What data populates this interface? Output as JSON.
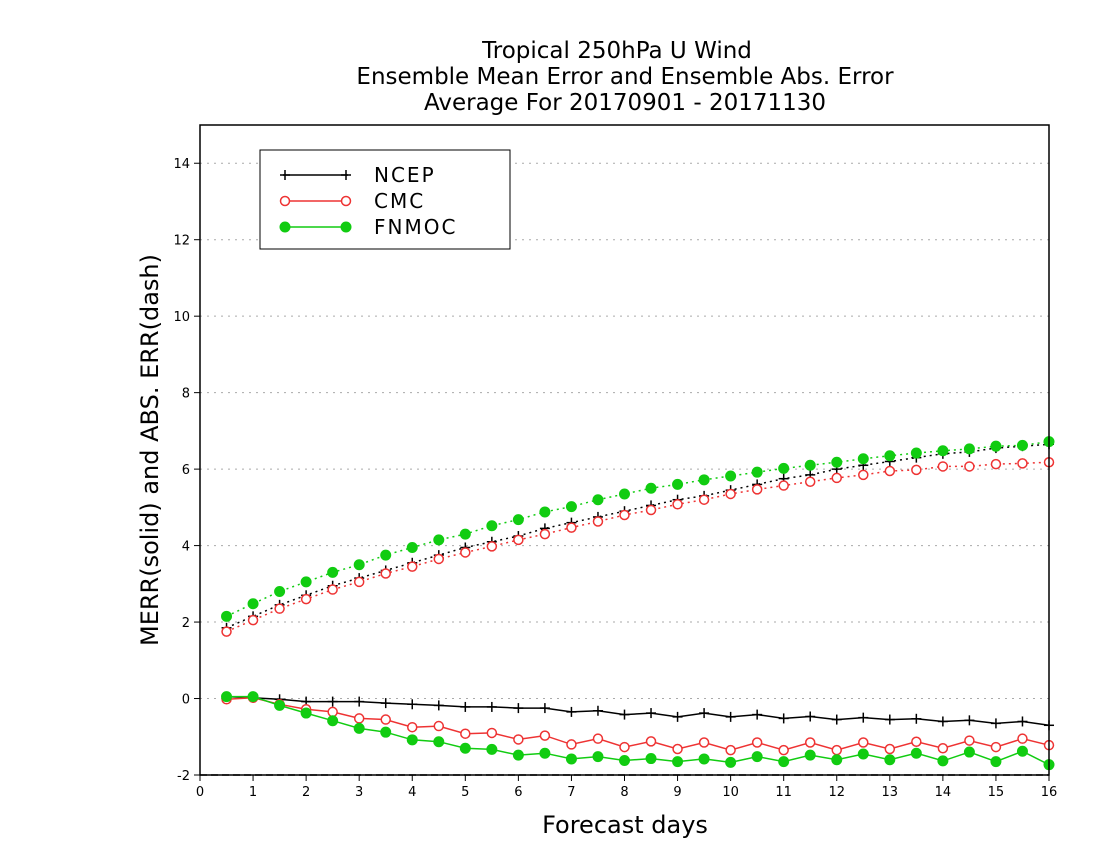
{
  "chart_data": {
    "type": "line",
    "title": [
      "Tropical 250hPa U Wind",
      "Ensemble Mean Error and Ensemble Abs. Error",
      "Average For 20170901 - 20171130"
    ],
    "xlabel": "Forecast days",
    "ylabel": "MERR(solid) and ABS. ERR(dash)",
    "xlim": [
      0,
      16
    ],
    "ylim": [
      -2,
      15
    ],
    "xticks": [
      0,
      1,
      2,
      3,
      4,
      5,
      6,
      7,
      8,
      9,
      10,
      11,
      12,
      13,
      14,
      15,
      16
    ],
    "yticks": [
      -2,
      0,
      2,
      4,
      6,
      8,
      10,
      12,
      14
    ],
    "grid": "horizontal dotted",
    "legend_position": "top-left",
    "x": [
      0.5,
      1.0,
      1.5,
      2.0,
      2.5,
      3.0,
      3.5,
      4.0,
      4.5,
      5.0,
      5.5,
      6.0,
      6.5,
      7.0,
      7.5,
      8.0,
      8.5,
      9.0,
      9.5,
      10.0,
      10.5,
      11.0,
      11.5,
      12.0,
      12.5,
      13.0,
      13.5,
      14.0,
      14.5,
      15.0,
      15.5,
      16.0
    ],
    "series": [
      {
        "name": "NCEP",
        "color": "#000000",
        "marker": "plus",
        "merr": [
          0.05,
          0.02,
          -0.02,
          -0.08,
          -0.08,
          -0.08,
          -0.12,
          -0.15,
          -0.18,
          -0.22,
          -0.22,
          -0.25,
          -0.25,
          -0.35,
          -0.32,
          -0.42,
          -0.38,
          -0.48,
          -0.38,
          -0.48,
          -0.42,
          -0.52,
          -0.47,
          -0.55,
          -0.5,
          -0.55,
          -0.53,
          -0.6,
          -0.57,
          -0.65,
          -0.6,
          -0.7
        ],
        "abs_err": [
          1.85,
          2.15,
          2.45,
          2.7,
          2.95,
          3.15,
          3.35,
          3.55,
          3.75,
          3.95,
          4.1,
          4.25,
          4.45,
          4.6,
          4.75,
          4.9,
          5.05,
          5.2,
          5.3,
          5.45,
          5.6,
          5.75,
          5.85,
          6.0,
          6.1,
          6.2,
          6.3,
          6.4,
          6.45,
          6.55,
          6.6,
          6.65
        ]
      },
      {
        "name": "CMC",
        "color": "#ee3333",
        "marker": "open-circle",
        "merr": [
          -0.02,
          0.02,
          -0.15,
          -0.28,
          -0.35,
          -0.52,
          -0.55,
          -0.75,
          -0.72,
          -0.92,
          -0.9,
          -1.07,
          -0.97,
          -1.2,
          -1.05,
          -1.27,
          -1.12,
          -1.32,
          -1.15,
          -1.35,
          -1.15,
          -1.35,
          -1.15,
          -1.35,
          -1.15,
          -1.32,
          -1.13,
          -1.3,
          -1.1,
          -1.27,
          -1.05,
          -1.22
        ],
        "abs_err": [
          1.75,
          2.05,
          2.35,
          2.6,
          2.85,
          3.05,
          3.27,
          3.45,
          3.65,
          3.82,
          3.98,
          4.15,
          4.3,
          4.47,
          4.63,
          4.8,
          4.93,
          5.08,
          5.2,
          5.35,
          5.47,
          5.57,
          5.67,
          5.77,
          5.85,
          5.95,
          5.98,
          6.07,
          6.07,
          6.13,
          6.15,
          6.18
        ]
      },
      {
        "name": "FNMOC",
        "color": "#11cc11",
        "marker": "filled-circle",
        "merr": [
          0.05,
          0.05,
          -0.18,
          -0.38,
          -0.58,
          -0.78,
          -0.88,
          -1.08,
          -1.13,
          -1.3,
          -1.33,
          -1.48,
          -1.43,
          -1.58,
          -1.52,
          -1.62,
          -1.57,
          -1.65,
          -1.58,
          -1.67,
          -1.52,
          -1.65,
          -1.48,
          -1.6,
          -1.45,
          -1.6,
          -1.43,
          -1.63,
          -1.4,
          -1.65,
          -1.38,
          -1.73
        ],
        "abs_err": [
          2.15,
          2.48,
          2.8,
          3.05,
          3.3,
          3.5,
          3.75,
          3.95,
          4.15,
          4.3,
          4.52,
          4.68,
          4.88,
          5.02,
          5.2,
          5.35,
          5.5,
          5.6,
          5.72,
          5.82,
          5.92,
          6.02,
          6.1,
          6.18,
          6.27,
          6.35,
          6.42,
          6.48,
          6.53,
          6.6,
          6.62,
          6.72
        ]
      }
    ]
  }
}
